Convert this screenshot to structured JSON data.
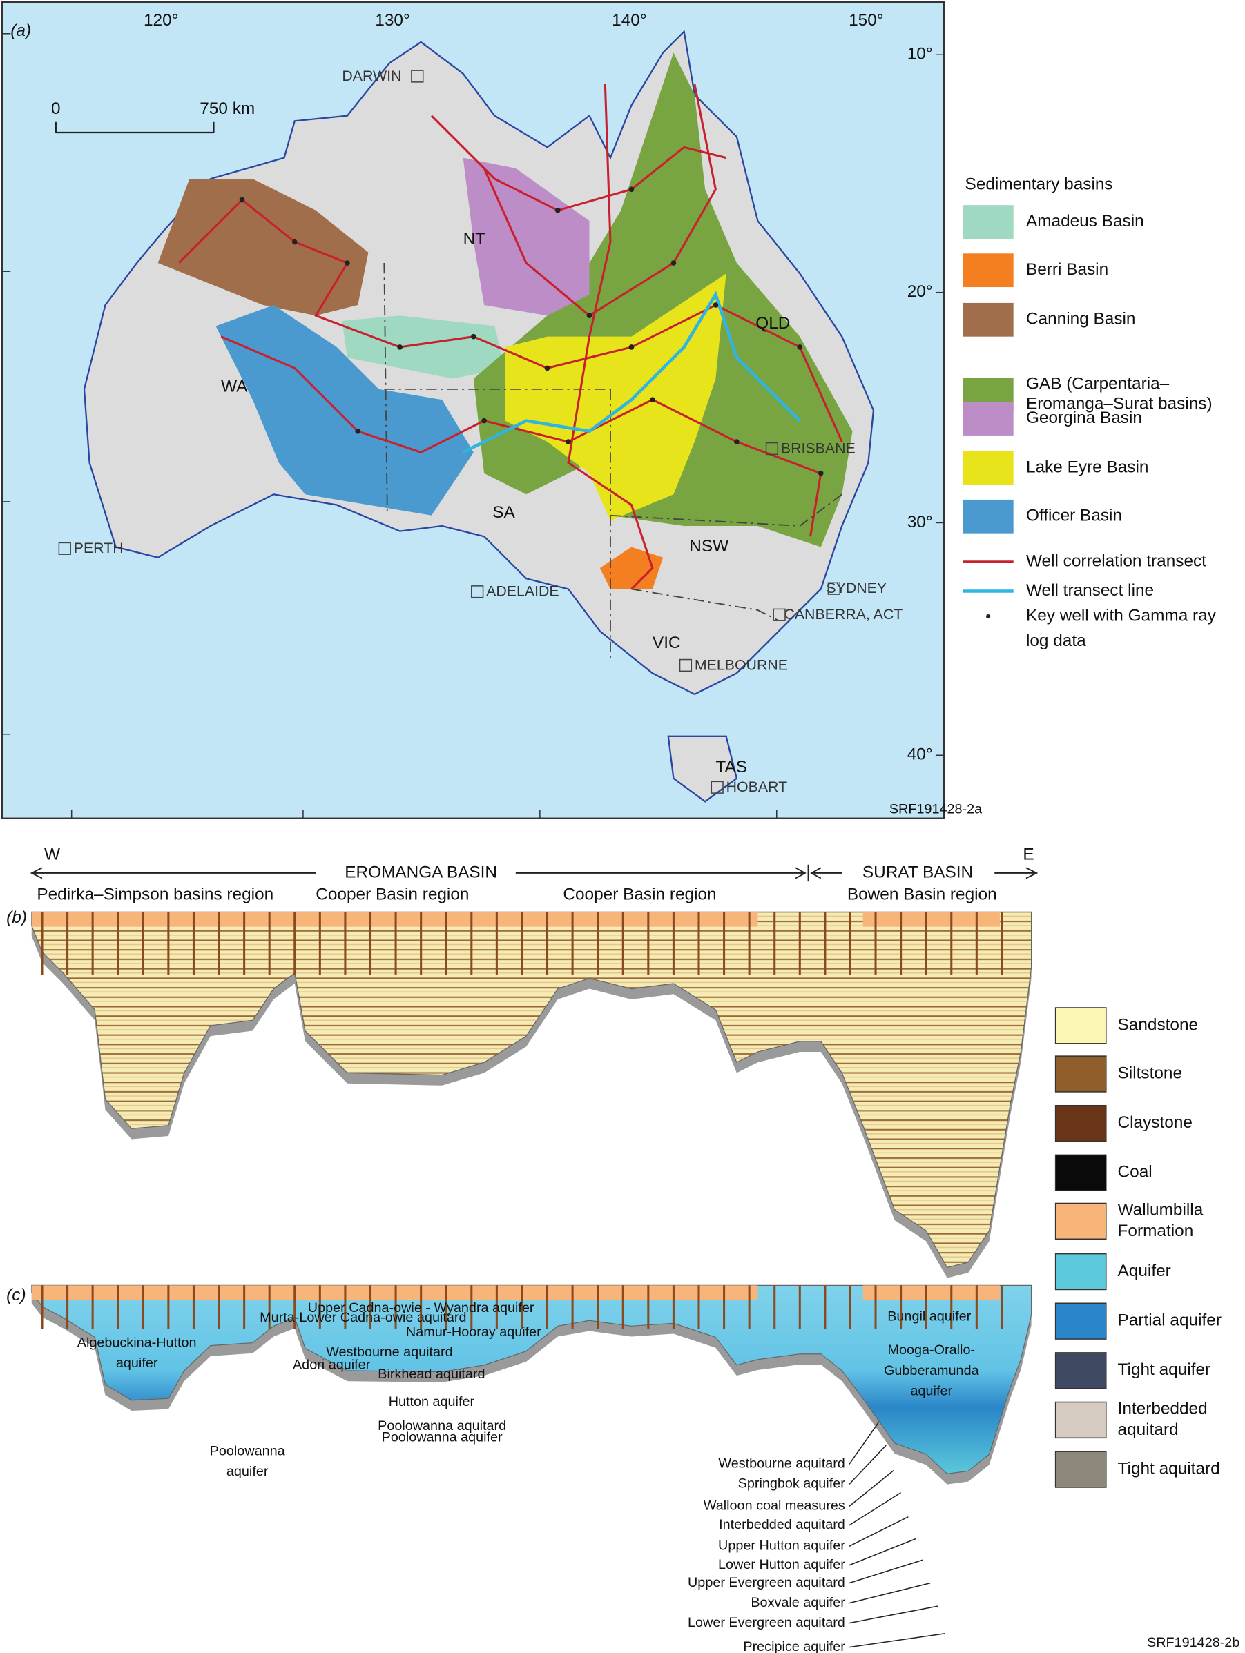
{
  "panel_a": {
    "label": "(a)",
    "longitude_labels": [
      "120°",
      "130°",
      "140°",
      "150°"
    ],
    "latitude_labels": [
      "10°",
      "20°",
      "30°",
      "40°"
    ],
    "scale_bar": [
      "0",
      "750 km"
    ],
    "places": [
      "DARWIN",
      "NT",
      "WA",
      "QLD",
      "SA",
      "NSW",
      "VIC",
      "TAS",
      "PERTH",
      "ADELAIDE",
      "BRISBANE",
      "SYDNEY",
      "CANBERRA, ACT",
      "MELBOURNE",
      "HOBART"
    ],
    "legend": {
      "title": "Sedimentary basins",
      "basins": [
        {
          "name": [
            "Amadeus Basin"
          ],
          "color": "#9fd9c1"
        },
        {
          "name": [
            "Berri Basin"
          ],
          "color": "#f47f20"
        },
        {
          "name": [
            "Canning Basin"
          ],
          "color": "#a16e4b"
        },
        {
          "name": [
            "GAB (Carpentaria–",
            "Eromanga–Surat basins)"
          ],
          "color": "#79a442"
        },
        {
          "name": [
            "Georgina Basin"
          ],
          "color": "#bc8dc6"
        },
        {
          "name": [
            "Lake Eyre Basin"
          ],
          "color": "#e8e41c"
        },
        {
          "name": [
            "Officer Basin"
          ],
          "color": "#4a9ad0"
        }
      ],
      "symbols": [
        {
          "name": [
            "Well correlation transect"
          ],
          "color": "#c8202c"
        },
        {
          "name": [
            "Well transect line"
          ],
          "color": "#30b4e0"
        },
        {
          "name": [
            "Key well with Gamma ray",
            "log data"
          ],
          "color": "#222222"
        }
      ]
    },
    "code": "SRF191428-2a"
  },
  "panel_b": {
    "label": "(b)",
    "west": "W",
    "east": "E",
    "basins": [
      "EROMANGA BASIN",
      "SURAT BASIN"
    ],
    "regions": [
      "Pedirka–Simpson basins region",
      "Cooper Basin region",
      "Cooper Basin region",
      "Bowen Basin region"
    ]
  },
  "panel_c": {
    "label": "(c)",
    "units": [
      [
        "Upper Cadna-owie - Wyandra aquifer"
      ],
      [
        "Murta-Lower Cadna-owie aquitard"
      ],
      [
        "Namur-Hooray aquifer"
      ],
      [
        "Algebuckina-Hutton",
        "aquifer"
      ],
      [
        "Westbourne aquitard"
      ],
      [
        "Adori aquifer"
      ],
      [
        "Birkhead aquitard"
      ],
      [
        "Hutton aquifer"
      ],
      [
        "Poolowanna aquitard"
      ],
      [
        "Poolowanna aquifer"
      ],
      [
        "Poolowanna",
        "aquifer"
      ],
      [
        "Bungil aquifer"
      ],
      [
        "Mooga-Orallo-",
        "Gubberamunda",
        "aquifer"
      ]
    ],
    "leader_labels": [
      "Westbourne aquitard",
      "Springbok aquifer",
      "Walloon coal measures",
      "Interbedded aquitard",
      "Upper Hutton aquifer",
      "Lower Hutton aquifer",
      "Upper Evergreen aquitard",
      "Boxvale aquifer",
      "Lower Evergreen aquitard",
      "Precipice aquifer"
    ],
    "code": "SRF191428-2b"
  },
  "legend_bc": [
    {
      "name": [
        "Sandstone"
      ],
      "color": "#fbf6b4"
    },
    {
      "name": [
        "Siltstone"
      ],
      "color": "#8f5e2a"
    },
    {
      "name": [
        "Claystone"
      ],
      "color": "#6a3418"
    },
    {
      "name": [
        "Coal"
      ],
      "color": "#0a0a0a"
    },
    {
      "name": [
        "Wallumbilla",
        "Formation"
      ],
      "color": "#f7b57a"
    },
    {
      "name": [
        "Aquifer"
      ],
      "color": "#5bc8dc"
    },
    {
      "name": [
        "Partial aquifer"
      ],
      "color": "#2a86c8"
    },
    {
      "name": [
        "Tight aquifer"
      ],
      "color": "#3f4a62"
    },
    {
      "name": [
        "Interbedded",
        "aquitard"
      ],
      "color": "#d5cbc0"
    },
    {
      "name": [
        "Tight aquitard"
      ],
      "color": "#8e877c"
    }
  ]
}
